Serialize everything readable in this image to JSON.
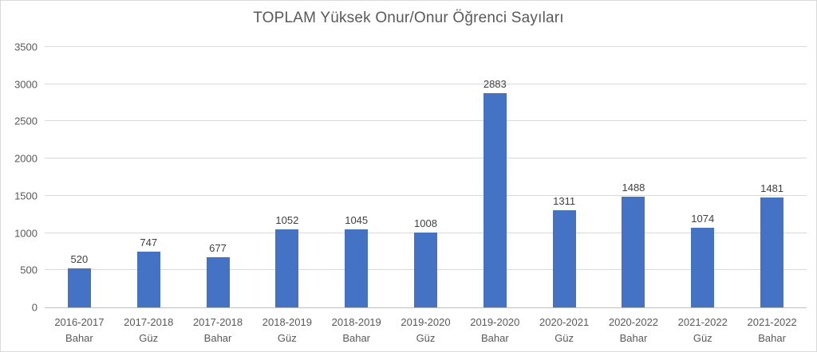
{
  "chart_data": {
    "type": "bar",
    "title": "TOPLAM Yüksek Onur/Onur Öğrenci Sayıları",
    "categories": [
      "2016-2017 Bahar",
      "2017-2018 Güz",
      "2017-2018 Bahar",
      "2018-2019 Güz",
      "2018-2019 Bahar",
      "2019-2020 Güz",
      "2019-2020 Bahar",
      "2020-2021 Güz",
      "2020-2022 Bahar",
      "2021-2022 Güz",
      "2021-2022 Bahar"
    ],
    "values": [
      520,
      747,
      677,
      1052,
      1045,
      1008,
      2883,
      1311,
      1488,
      1074,
      1481
    ],
    "xlabel": "",
    "ylabel": "",
    "ylim": [
      0,
      3500
    ],
    "yticks": [
      0,
      500,
      1000,
      1500,
      2000,
      2500,
      3000,
      3500
    ],
    "grid": true,
    "legend": false,
    "data_labels": true,
    "colors": {
      "bar": "#4472C4",
      "gridline": "#D9D9D9",
      "axis_line": "#BFBFBF",
      "title_text": "#595959",
      "tick_text": "#595959",
      "data_label_text": "#404040",
      "background": "#FFFFFF",
      "border": "#D9D9D9"
    }
  }
}
